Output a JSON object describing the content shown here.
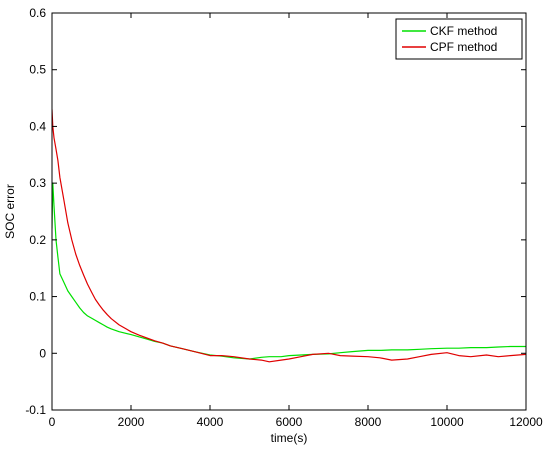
{
  "chart_data": {
    "type": "line",
    "title": "",
    "xlabel": "time(s)",
    "ylabel": "SOC error",
    "xlim": [
      0,
      12000
    ],
    "ylim": [
      -0.1,
      0.6
    ],
    "xticks": [
      0,
      2000,
      4000,
      6000,
      8000,
      10000,
      12000
    ],
    "yticks": [
      -0.1,
      0,
      0.1,
      0.2,
      0.3,
      0.4,
      0.5,
      0.6
    ],
    "xtick_labels": [
      "0",
      "2000",
      "4000",
      "6000",
      "8000",
      "10000",
      "12000"
    ],
    "ytick_labels": [
      "-0.1",
      "0",
      "0.1",
      "0.2",
      "0.3",
      "0.4",
      "0.5",
      "0.6"
    ],
    "grid": false,
    "legend_position": "top-right",
    "series": [
      {
        "name": "CKF method",
        "color": "#00e000",
        "x": [
          0,
          20,
          50,
          100,
          150,
          200,
          300,
          400,
          500,
          600,
          700,
          800,
          900,
          1000,
          1100,
          1200,
          1300,
          1400,
          1500,
          1700,
          2000,
          2200,
          2400,
          2600,
          2800,
          3000,
          3300,
          3600,
          4000,
          4300,
          4600,
          5000,
          5300,
          5500,
          5800,
          6000,
          6300,
          6600,
          7000,
          7300,
          7600,
          8000,
          8300,
          8600,
          9000,
          9300,
          9600,
          10000,
          10300,
          10600,
          11000,
          11300,
          11600,
          12000
        ],
        "y": [
          0.22,
          0.3,
          0.26,
          0.2,
          0.17,
          0.14,
          0.125,
          0.11,
          0.1,
          0.09,
          0.08,
          0.072,
          0.066,
          0.062,
          0.058,
          0.054,
          0.05,
          0.046,
          0.043,
          0.038,
          0.033,
          0.029,
          0.025,
          0.021,
          0.018,
          0.013,
          0.008,
          0.003,
          -0.003,
          -0.005,
          -0.008,
          -0.01,
          -0.007,
          -0.006,
          -0.006,
          -0.004,
          -0.003,
          -0.002,
          -0.001,
          0.001,
          0.003,
          0.005,
          0.005,
          0.006,
          0.006,
          0.007,
          0.008,
          0.009,
          0.009,
          0.01,
          0.01,
          0.011,
          0.012,
          0.012
        ]
      },
      {
        "name": "CPF method",
        "color": "#e00000",
        "x": [
          0,
          20,
          50,
          100,
          150,
          200,
          300,
          400,
          500,
          600,
          700,
          800,
          900,
          1000,
          1100,
          1200,
          1300,
          1400,
          1500,
          1700,
          2000,
          2200,
          2400,
          2600,
          2800,
          3000,
          3300,
          3600,
          4000,
          4300,
          4600,
          5000,
          5300,
          5500,
          5800,
          6000,
          6300,
          6600,
          7000,
          7300,
          7600,
          8000,
          8300,
          8600,
          9000,
          9300,
          9600,
          10000,
          10300,
          10600,
          11000,
          11300,
          11600,
          12000
        ],
        "y": [
          0.43,
          0.4,
          0.38,
          0.36,
          0.34,
          0.31,
          0.27,
          0.23,
          0.2,
          0.175,
          0.155,
          0.138,
          0.122,
          0.108,
          0.095,
          0.085,
          0.076,
          0.068,
          0.061,
          0.05,
          0.038,
          0.032,
          0.027,
          0.022,
          0.018,
          0.013,
          0.008,
          0.003,
          -0.004,
          -0.004,
          -0.006,
          -0.01,
          -0.012,
          -0.015,
          -0.012,
          -0.01,
          -0.006,
          -0.002,
          0.0,
          -0.004,
          -0.005,
          -0.006,
          -0.008,
          -0.012,
          -0.01,
          -0.006,
          -0.002,
          0.001,
          -0.004,
          -0.006,
          -0.003,
          -0.006,
          -0.004,
          -0.002
        ]
      }
    ]
  }
}
